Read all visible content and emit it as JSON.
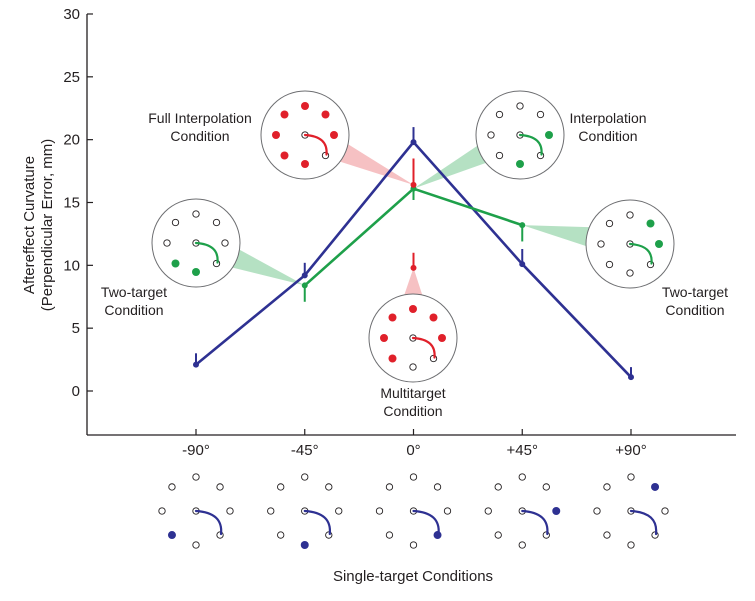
{
  "chart_data": {
    "type": "line",
    "title": "",
    "xlabel": "Single-target Conditions",
    "ylabel": [
      "Aftereffect Curvature",
      "(Perpendicular Error, mm)"
    ],
    "ylim": [
      -3.4,
      30
    ],
    "yticks": [
      0,
      5,
      10,
      15,
      20,
      25,
      30
    ],
    "ytick_labels": [
      "0",
      "5",
      "10",
      "15",
      "20",
      "25",
      "30"
    ],
    "x": [
      -90,
      -45,
      0,
      45,
      90
    ],
    "xtick_labels": [
      "-90°",
      "-45°",
      "0°",
      "+45°",
      "+90°"
    ],
    "grid": false,
    "colors": {
      "single": "#2e3192",
      "multi": "#e0202a",
      "two": "#1ea04a",
      "halo_red": "#f4b6b8",
      "halo_green": "#a8dcb9"
    },
    "series": [
      {
        "name": "Single-target",
        "color": "#2e3192",
        "x": [
          -90,
          -45,
          0,
          45,
          90
        ],
        "values": [
          2.1,
          9.2,
          19.8,
          10.1,
          1.1
        ],
        "error_up": [
          0.9,
          1.0,
          1.2,
          1.2,
          0.8
        ]
      },
      {
        "name": "Two-target / Interpolation",
        "color": "#1ea04a",
        "x": [
          -45,
          0,
          45
        ],
        "values": [
          8.4,
          16.1,
          13.2
        ],
        "error_down": [
          1.3,
          0.9,
          1.3
        ]
      },
      {
        "name": "Full Interpolation",
        "color": "#e0202a",
        "x": [
          0
        ],
        "values": [
          16.4
        ],
        "error_up": [
          2.1
        ]
      },
      {
        "name": "Multitarget",
        "color": "#e0202a",
        "x": [
          0
        ],
        "values": [
          9.8
        ],
        "error_up": [
          1.2
        ]
      }
    ],
    "annotations": [
      {
        "id": "full-interp",
        "label": [
          "Full Interpolation",
          "Condition"
        ],
        "color": "#e0202a",
        "halo": "#f4b6b8",
        "points_to": {
          "x": 0,
          "y": 16.4
        },
        "filled_targets": [
          "N",
          "NE",
          "E",
          "S",
          "SW",
          "W",
          "NW"
        ],
        "open_targets": [
          "SE"
        ],
        "path_color": "#e0202a"
      },
      {
        "id": "interp",
        "label": [
          "Interpolation",
          "Condition"
        ],
        "color": "#1ea04a",
        "halo": "#a8dcb9",
        "points_to": {
          "x": 0,
          "y": 16.1
        },
        "filled_targets": [
          "E",
          "S"
        ],
        "path_color": "#1ea04a"
      },
      {
        "id": "two-left",
        "label": [
          "Two-target",
          "Condition"
        ],
        "color": "#1ea04a",
        "halo": "#a8dcb9",
        "points_to": {
          "x": -45,
          "y": 8.4
        },
        "filled_targets": [
          "S",
          "SW"
        ],
        "path_color": "#1ea04a"
      },
      {
        "id": "two-right",
        "label": [
          "Two-target",
          "Condition"
        ],
        "color": "#1ea04a",
        "halo": "#a8dcb9",
        "points_to": {
          "x": 45,
          "y": 13.2
        },
        "filled_targets": [
          "NE",
          "E"
        ],
        "path_color": "#1ea04a"
      },
      {
        "id": "multi",
        "label": [
          "Multitarget",
          "Condition"
        ],
        "color": "#e0202a",
        "halo": "#f4b6b8",
        "points_to": {
          "x": 0,
          "y": 9.8
        },
        "filled_targets": [
          "N",
          "NE",
          "E",
          "W",
          "SW",
          "NW"
        ],
        "path_color": "#e0202a"
      }
    ],
    "single_target_diagrams": [
      {
        "angle": -90,
        "filled_target": "SW"
      },
      {
        "angle": -45,
        "filled_target": "S"
      },
      {
        "angle": 0,
        "filled_target": "SE"
      },
      {
        "angle": 45,
        "filled_target": "E"
      },
      {
        "angle": 90,
        "filled_target": "NE"
      }
    ]
  }
}
